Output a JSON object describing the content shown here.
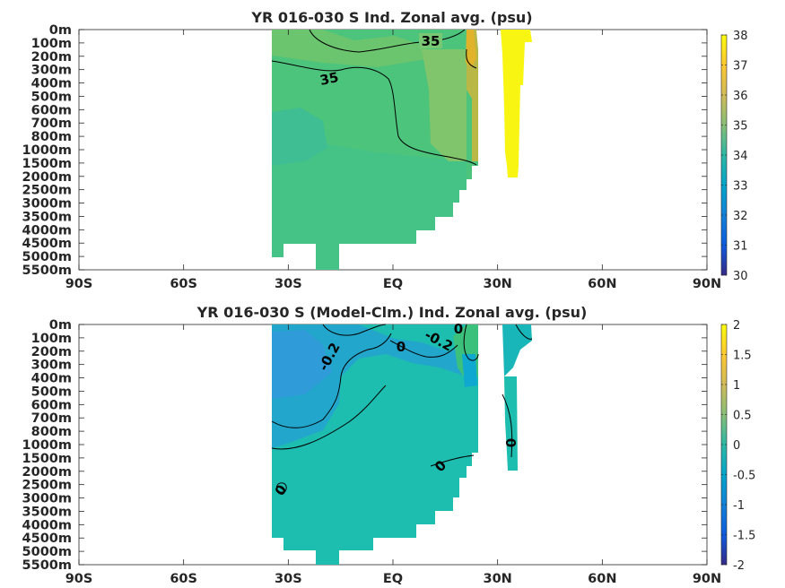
{
  "chart_data": [
    {
      "type": "heatmap",
      "title": "YR 016-030 S Ind. Zonal avg. (psu)",
      "x_ticks": [
        "90S",
        "60S",
        "30S",
        "EQ",
        "30N",
        "60N",
        "90N"
      ],
      "y_ticks": [
        "0m",
        "100m",
        "200m",
        "300m",
        "400m",
        "500m",
        "600m",
        "700m",
        "800m",
        "1000m",
        "1500m",
        "2000m",
        "2500m",
        "3000m",
        "3500m",
        "4000m",
        "4500m",
        "5000m",
        "5500m"
      ],
      "colorbar": {
        "min": 30,
        "max": 38,
        "ticks": [
          "30",
          "31",
          "32",
          "33",
          "34",
          "35",
          "36",
          "37",
          "38"
        ],
        "colormap": "parula"
      },
      "contour_labels": [
        "35",
        "35"
      ],
      "colors": {
        "main_field": "#4cc47c",
        "deep_field": "#3fc39a",
        "high_salinity": "#f8f512",
        "subtropic": "#e0b32a"
      }
    },
    {
      "type": "heatmap",
      "title": "YR 016-030 S (Model-Clm.) Ind. Zonal avg. (psu)",
      "x_ticks": [
        "90S",
        "60S",
        "30S",
        "EQ",
        "30N",
        "60N",
        "90N"
      ],
      "y_ticks": [
        "0m",
        "100m",
        "200m",
        "300m",
        "400m",
        "500m",
        "600m",
        "700m",
        "800m",
        "1000m",
        "1500m",
        "2000m",
        "2500m",
        "3000m",
        "3500m",
        "4000m",
        "4500m",
        "5000m",
        "5500m"
      ],
      "colorbar": {
        "min": -2,
        "max": 2,
        "ticks": [
          "-2",
          "-1.5",
          "-1",
          "-0.5",
          "0",
          "0.5",
          "1",
          "1.5",
          "2"
        ],
        "colormap": "parula"
      },
      "contour_labels": [
        "-0.2",
        "0",
        "-0.2",
        "0",
        "0",
        "0",
        "0"
      ],
      "colors": {
        "main_field": "#1dbdb0",
        "negative": "#23a6cc",
        "positive": "#3cc17d"
      }
    }
  ]
}
